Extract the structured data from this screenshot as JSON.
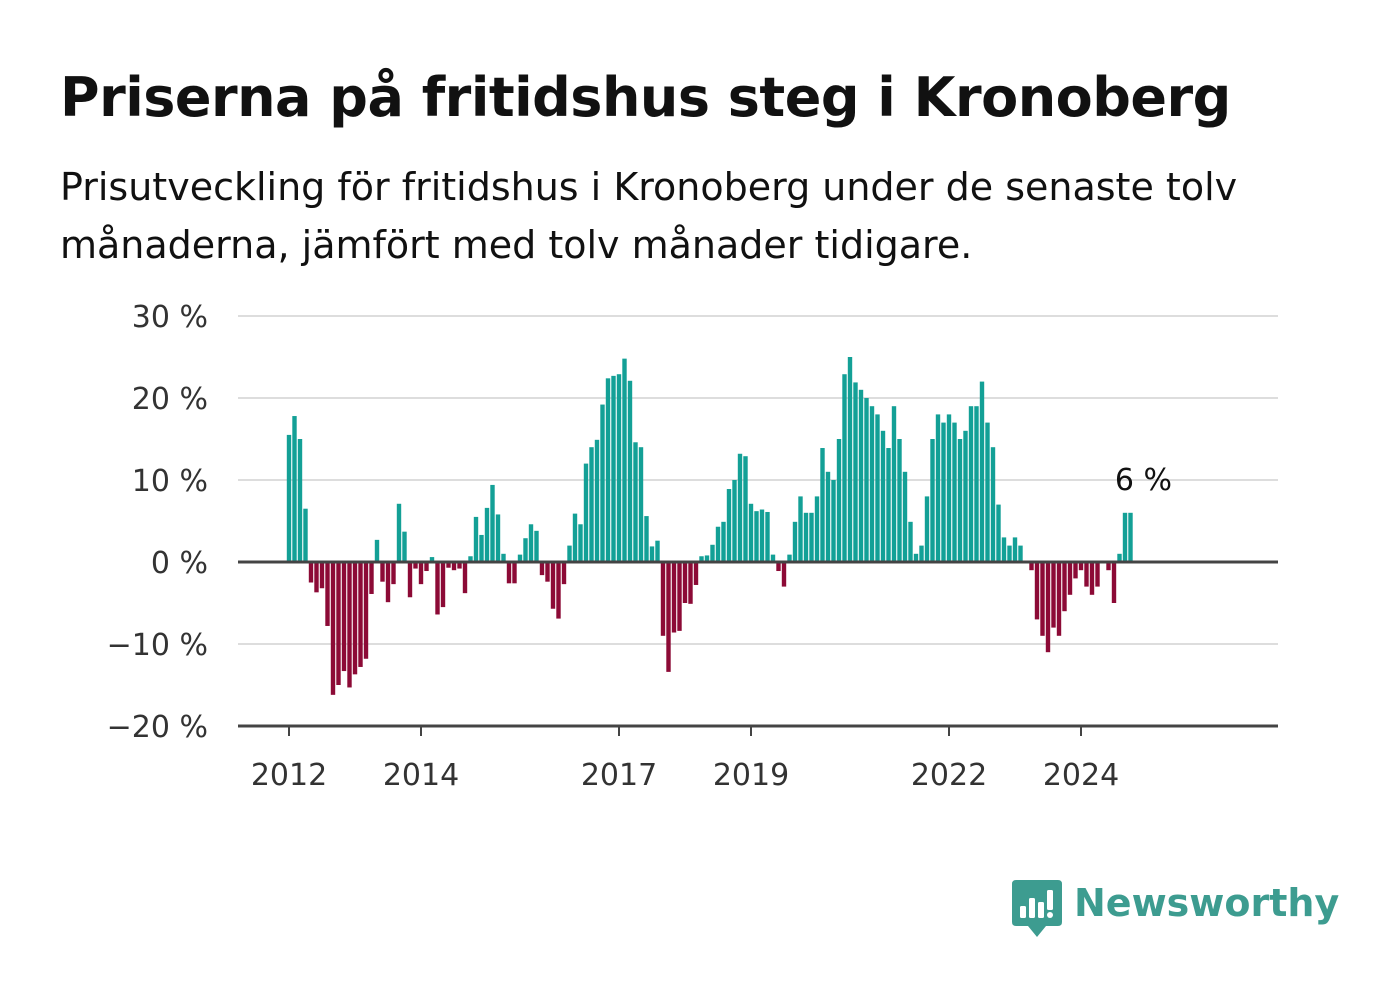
{
  "title": "Priserna på fritidshus steg i Kronoberg",
  "subtitle": "Prisutveckling för fritidshus i Kronoberg under de senaste tolv månaderna, jämfört med tolv månader tidigare.",
  "brand": {
    "name": "Newsworthy",
    "icon": "newsworthy-logo-icon",
    "color": "#3d9c90"
  },
  "chart_data": {
    "type": "bar",
    "title": "Priserna på fritidshus steg i Kronoberg",
    "subtitle": "Prisutveckling för fritidshus i Kronoberg under de senaste tolv månaderna, jämfört med tolv månader tidigare.",
    "xlabel": "",
    "ylabel": "",
    "x_start": "2012-01",
    "frequency": "monthly",
    "ylim": [
      -20,
      30
    ],
    "yticks": [
      -20,
      -10,
      0,
      10,
      20,
      30
    ],
    "ytick_labels": [
      "−20 %",
      "−10 %",
      "0 %",
      "10 %",
      "20 %",
      "30 %"
    ],
    "xtick_labels": [
      "2012",
      "2014",
      "2017",
      "2019",
      "2022",
      "2024"
    ],
    "xtick_dates": [
      "2012-01",
      "2014-01",
      "2017-01",
      "2019-01",
      "2022-01",
      "2024-01"
    ],
    "grid": true,
    "legend": "none",
    "colors": {
      "positive": "#13a096",
      "negative": "#8c0a36",
      "grid": "#dddddd",
      "axis": "#444444"
    },
    "annotation": {
      "text": "6 %",
      "date": "2024-12"
    },
    "values": [
      15.5,
      17.8,
      15.0,
      6.5,
      -2.5,
      -3.7,
      -3.2,
      -7.8,
      -16.2,
      -15.0,
      -13.3,
      -15.3,
      -13.7,
      -12.8,
      -11.8,
      -3.9,
      2.7,
      -2.4,
      -4.9,
      -2.7,
      7.1,
      3.7,
      -4.3,
      -0.8,
      -2.7,
      -1.1,
      0.6,
      -6.4,
      -5.5,
      -0.7,
      -1.0,
      -0.8,
      -3.8,
      0.7,
      5.5,
      3.3,
      6.6,
      9.4,
      5.8,
      1.0,
      -2.6,
      -2.6,
      0.9,
      2.9,
      4.6,
      3.8,
      -1.6,
      -2.4,
      -5.7,
      -6.9,
      -2.7,
      2.0,
      5.9,
      4.6,
      12.0,
      14.0,
      14.9,
      19.2,
      22.4,
      22.7,
      22.9,
      24.8,
      22.1,
      14.6,
      14.0,
      5.6,
      1.9,
      2.6,
      -9.0,
      -13.4,
      -8.6,
      -8.4,
      -5.0,
      -5.1,
      -2.8,
      0.7,
      0.8,
      2.1,
      4.3,
      4.9,
      8.9,
      10.0,
      13.2,
      12.9,
      7.1,
      6.2,
      6.4,
      6.1,
      0.9,
      -1.1,
      -3.0,
      0.9,
      4.9,
      8.0,
      6.0,
      6.0,
      8.0,
      13.9,
      11.0,
      10.0,
      15.0,
      22.9,
      25.0,
      21.9,
      21.0,
      20.0,
      19.0,
      18.0,
      16.0,
      13.9,
      19.0,
      15.0,
      11.0,
      4.9,
      1.0,
      2.0,
      8.0,
      15.0,
      18.0,
      17.0,
      18.0,
      17.0,
      15.0,
      16.0,
      19.0,
      19.0,
      22.0,
      17.0,
      14.0,
      7.0,
      3.0,
      2.0,
      3.0,
      2.0,
      0.0,
      -1.0,
      -7.0,
      -9.0,
      -11.0,
      -8.0,
      -9.0,
      -6.0,
      -4.0,
      -2.0,
      -1.0,
      -3.0,
      -4.0,
      -3.0,
      0.0,
      -1.0,
      -5.0,
      1.0,
      6.0,
      6.0
    ]
  }
}
